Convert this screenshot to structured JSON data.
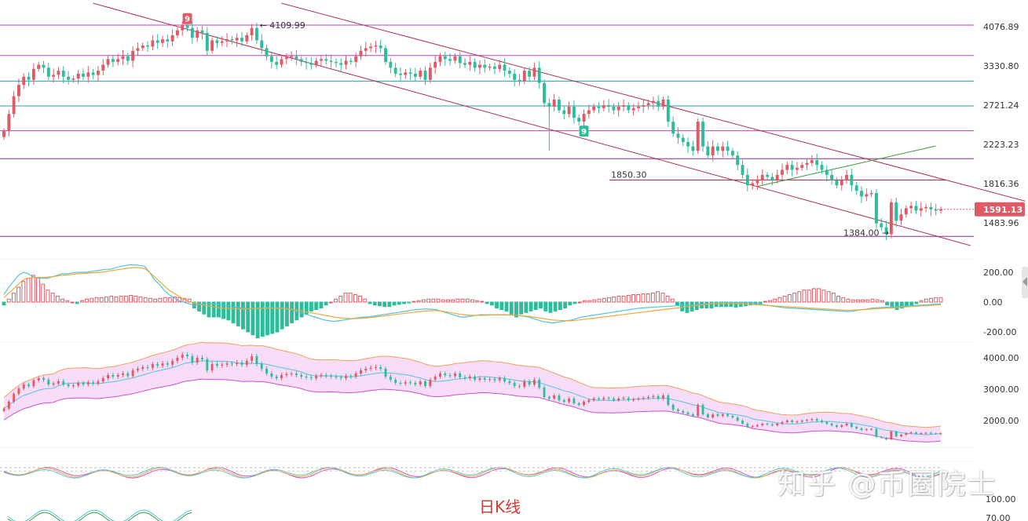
{
  "caption": "日K线",
  "watermark": "知乎 @币圈院士",
  "colors": {
    "up": "#e05a66",
    "down": "#2ebd9b",
    "channel": "#b0314a",
    "level_magenta": "#c13fc4",
    "level_teal": "#2a9fae",
    "level_purple": "#8f2a8f",
    "level_darkred": "#a02040",
    "trendline_green": "#3c9a3c",
    "price_tag": "#e05a66",
    "ma_fast": "#50c4e0",
    "ma_slow": "#f0a83a",
    "bb_band_fill": "#f6dcf6",
    "bb_upper": "#f0a060",
    "bb_lower": "#d050d0",
    "bb_mid": "#50c4e0",
    "rsi_lines": [
      "#d050d0",
      "#f0a83a",
      "#50c4e0"
    ]
  },
  "chart_data": [
    {
      "panel": "price",
      "type": "candlestick",
      "y_ticks": [
        "4076.89",
        "3330.80",
        "2721.24",
        "2223.23",
        "1816.36",
        "1483.96"
      ],
      "y_tick_values": [
        4076.89,
        3330.8,
        2721.24,
        2223.23,
        1816.36,
        1483.96
      ],
      "log_scale": true,
      "current_price": "1591.13",
      "current_price_value": 1591.13,
      "annotations": [
        {
          "text": "4109.99",
          "value": 4109.99
        },
        {
          "text": "1850.30",
          "value": 1850.3
        },
        {
          "text": "1384.00",
          "value": 1384.0
        }
      ],
      "markers": [
        {
          "text": "9",
          "color": "#e05a66",
          "bar": 37
        },
        {
          "text": "9",
          "color": "#2ebd9b",
          "bar": 117
        }
      ],
      "horizontal_levels": [
        {
          "value": 4109.99,
          "color": "magenta"
        },
        {
          "value": 3514,
          "color": "magenta"
        },
        {
          "value": 3080,
          "color": "teal"
        },
        {
          "value": 2710,
          "color": "teal"
        },
        {
          "value": 2385,
          "color": "magenta"
        },
        {
          "value": 2065,
          "color": "purple"
        },
        {
          "value": 1850.3,
          "color": "darkred"
        },
        {
          "value": 1384.0,
          "color": "purple"
        }
      ],
      "channel_lines": [
        {
          "from": {
            "bar": 18,
            "value": 4600
          },
          "to": {
            "bar": 195,
            "value": 1320
          }
        },
        {
          "from": {
            "bar": 56,
            "value": 4600
          },
          "to": {
            "bar": 206,
            "value": 1660
          }
        }
      ],
      "trend_line": {
        "from": {
          "bar": 152,
          "value": 1790
        },
        "to": {
          "bar": 188,
          "value": 2205
        }
      },
      "series": [
        {
          "name": "closes",
          "values": [
            2380,
            2600,
            2850,
            3020,
            3150,
            3100,
            3280,
            3350,
            3300,
            3150,
            3180,
            3250,
            3150,
            3100,
            3120,
            3200,
            3150,
            3220,
            3180,
            3250,
            3350,
            3450,
            3400,
            3450,
            3500,
            3420,
            3600,
            3650,
            3700,
            3680,
            3800,
            3750,
            3820,
            3780,
            3900,
            4000,
            4100,
            4050,
            3850,
            4000,
            3950,
            3600,
            3800,
            3750,
            3780,
            3820,
            3800,
            3850,
            3780,
            3900,
            4050,
            3800,
            3650,
            3500,
            3400,
            3350,
            3450,
            3480,
            3500,
            3450,
            3400,
            3380,
            3350,
            3420,
            3450,
            3420,
            3400,
            3380,
            3350,
            3420,
            3400,
            3500,
            3600,
            3650,
            3680,
            3700,
            3650,
            3400,
            3300,
            3200,
            3180,
            3220,
            3200,
            3150,
            3250,
            3100,
            3300,
            3400,
            3500,
            3450,
            3420,
            3500,
            3380,
            3350,
            3400,
            3300,
            3350,
            3300,
            3320,
            3280,
            3350,
            3250,
            3200,
            3100,
            3080,
            3250,
            3150,
            3300,
            3050,
            2750,
            2700,
            2800,
            2650,
            2600,
            2700,
            2550,
            2500,
            2600,
            2650,
            2700,
            2680,
            2720,
            2700,
            2650,
            2700,
            2720,
            2650,
            2680,
            2700,
            2720,
            2750,
            2780,
            2700,
            2800,
            2500,
            2350,
            2300,
            2250,
            2200,
            2150,
            2500,
            2200,
            2100,
            2200,
            2150,
            2200,
            2150,
            2100,
            2000,
            1900,
            1800,
            1820,
            1850,
            1900,
            1880,
            1850,
            1900,
            1950,
            2000,
            1950,
            1970,
            2000,
            2020,
            2050,
            2000,
            1950,
            1900,
            1850,
            1800,
            1850,
            1900,
            1800,
            1750,
            1700,
            1720,
            1730,
            1480,
            1450,
            1400,
            1650,
            1500,
            1550,
            1600,
            1620,
            1580,
            1600,
            1610,
            1590,
            1580,
            1591
          ]
        }
      ]
    },
    {
      "panel": "macd",
      "type": "histogram+lines",
      "y_ticks": [
        "200.00",
        "0.00",
        "-200.00"
      ],
      "y_tick_values": [
        200,
        0,
        -200
      ],
      "series": [
        {
          "values": [
            -20,
            20,
            60,
            100,
            140,
            160,
            180,
            160,
            120,
            80,
            60,
            40,
            20,
            10,
            0,
            -10,
            10,
            20,
            25,
            30,
            30,
            35,
            40,
            35,
            40,
            40,
            45,
            40,
            35,
            30,
            25,
            20,
            25,
            30,
            30,
            35,
            30,
            25,
            20,
            -40,
            -60,
            -80,
            -100,
            -100,
            -100,
            -110,
            -120,
            -140,
            -160,
            -180,
            -200,
            -220,
            -240,
            -230,
            -220,
            -210,
            -200,
            -180,
            -160,
            -140,
            -120,
            -100,
            -80,
            -60,
            -50,
            -40,
            -20,
            0,
            20,
            40,
            60,
            60,
            50,
            40,
            20,
            -10,
            -20,
            -25,
            -30,
            -30,
            -20,
            -15,
            -10,
            -5,
            5,
            10,
            15,
            20,
            20,
            20,
            15,
            15,
            15,
            20,
            20,
            20,
            15,
            10,
            5,
            -10,
            -20,
            -40,
            -50,
            -60,
            -80,
            -100,
            -80,
            -70,
            -60,
            -50,
            -40,
            -60,
            -70,
            -60,
            -50,
            -40,
            -20,
            -10,
            0,
            10,
            10,
            15,
            20,
            25,
            30,
            35,
            40,
            40,
            45,
            50,
            50,
            55,
            55,
            60,
            70,
            60,
            40,
            20,
            -20,
            -60,
            -70,
            -60,
            -50,
            -40,
            -40,
            -40,
            -30,
            -30,
            -30,
            -30,
            -35,
            -30,
            -25,
            -20,
            -15,
            -10,
            5,
            10,
            20,
            30,
            40,
            50,
            60,
            70,
            80,
            80,
            90,
            90,
            80,
            70,
            60,
            40,
            30,
            20,
            15,
            15,
            15,
            15,
            20,
            15,
            10,
            -20,
            -40,
            -50,
            -40,
            -30,
            -20,
            -10,
            10,
            20,
            25,
            30,
            30
          ]
        },
        {
          "values": [
            50,
            100,
            140,
            180,
            200,
            190,
            170,
            160,
            160,
            160,
            170,
            180,
            190,
            190,
            195,
            200,
            200,
            200,
            205,
            210,
            215,
            220,
            220,
            230,
            240,
            245,
            250,
            250,
            245,
            240,
            200,
            150,
            120,
            80,
            50,
            30,
            10,
            0,
            -10,
            -20,
            -20,
            -10,
            -10,
            -10,
            -15,
            -20,
            -25,
            -30,
            -35,
            -40,
            -42,
            -45,
            -42,
            -40,
            -38,
            -36,
            -38,
            -40,
            -45,
            -50,
            -60,
            -70,
            -80,
            -90,
            -100,
            -110,
            -120,
            -125,
            -130,
            -125,
            -120,
            -115,
            -110,
            -105,
            -100,
            -100,
            -95,
            -90,
            -85,
            -80,
            -75,
            -70,
            -65,
            -60,
            -55,
            -50,
            -48,
            -46,
            -48,
            -50,
            -60,
            -70,
            -80,
            -90,
            -100,
            -100,
            -95,
            -90,
            -85,
            -85,
            -85,
            -85,
            -85,
            -85,
            -86,
            -87,
            -90,
            -95,
            -100,
            -110,
            -120,
            -130,
            -135,
            -140,
            -135,
            -130,
            -125,
            -120,
            -110,
            -100,
            -95,
            -90,
            -85,
            -80,
            -75,
            -70,
            -65,
            -60,
            -55,
            -50,
            -45,
            -40,
            -38,
            -36,
            -34,
            -32,
            -30,
            -28,
            -26,
            -24,
            -22,
            -20,
            -18,
            -16,
            -14,
            -12,
            -10,
            -8,
            -6,
            -5,
            -4,
            -3,
            -2,
            -1,
            -5,
            -10,
            -15,
            -20,
            -25,
            -30,
            -35,
            -38,
            -40,
            -42,
            -44,
            -46,
            -48,
            -50,
            -52,
            -54,
            -56,
            -58,
            -60,
            -62,
            -64,
            -60,
            -55,
            -50,
            -45,
            -40,
            -38,
            -36,
            -34,
            -32,
            -30,
            -28,
            -26,
            -24,
            -22,
            -20,
            -18,
            -16,
            -14,
            -12
          ]
        },
        {
          "values": [
            30,
            60,
            90,
            120,
            150,
            160,
            165,
            165,
            165,
            168,
            170,
            175,
            180,
            182,
            185,
            190,
            192,
            194,
            196,
            198,
            200,
            205,
            210,
            215,
            220,
            225,
            230,
            232,
            230,
            225,
            200,
            170,
            140,
            110,
            80,
            60,
            40,
            20,
            5,
            -5,
            -15,
            -20,
            -25,
            -30,
            -35,
            -40,
            -42,
            -44,
            -45,
            -46,
            -45,
            -44,
            -43,
            -42,
            -41,
            -40,
            -40,
            -42,
            -45,
            -48,
            -52,
            -58,
            -64,
            -70,
            -76,
            -82,
            -88,
            -94,
            -100,
            -105,
            -108,
            -110,
            -111,
            -110,
            -108,
            -105,
            -102,
            -98,
            -94,
            -90,
            -86,
            -82,
            -78,
            -74,
            -70,
            -66,
            -62,
            -60,
            -58,
            -57,
            -60,
            -65,
            -70,
            -76,
            -82,
            -86,
            -88,
            -89,
            -89,
            -88,
            -87,
            -86,
            -86,
            -86,
            -87,
            -88,
            -90,
            -93,
            -96,
            -100,
            -105,
            -110,
            -115,
            -120,
            -122,
            -124,
            -125,
            -125,
            -122,
            -118,
            -114,
            -110,
            -106,
            -102,
            -98,
            -94,
            -90,
            -86,
            -82,
            -78,
            -74,
            -70,
            -66,
            -62,
            -58,
            -54,
            -50,
            -46,
            -42,
            -38,
            -34,
            -30,
            -26,
            -22,
            -18,
            -14,
            -12,
            -10,
            -9,
            -8,
            -9,
            -10,
            -12,
            -14,
            -16,
            -18,
            -20,
            -22,
            -24,
            -26,
            -28,
            -30,
            -32,
            -34,
            -36,
            -38,
            -40,
            -42,
            -44,
            -46,
            -48,
            -50,
            -52,
            -54,
            -55,
            -54,
            -52,
            -50,
            -48,
            -46,
            -44,
            -42,
            -40,
            -38,
            -36,
            -34,
            -32,
            -30,
            -28,
            -26,
            -24,
            -22,
            -20,
            -18
          ]
        }
      ]
    },
    {
      "panel": "bollinger",
      "type": "candlestick+bands",
      "y_ticks": [
        "4000.00",
        "3000.00",
        "2000.00"
      ],
      "y_tick_values": [
        4000,
        3000,
        2000
      ]
    },
    {
      "panel": "rsi",
      "type": "line",
      "y_ticks": [
        "100.00",
        "70.00"
      ],
      "y_tick_values": [
        100,
        70
      ]
    }
  ]
}
